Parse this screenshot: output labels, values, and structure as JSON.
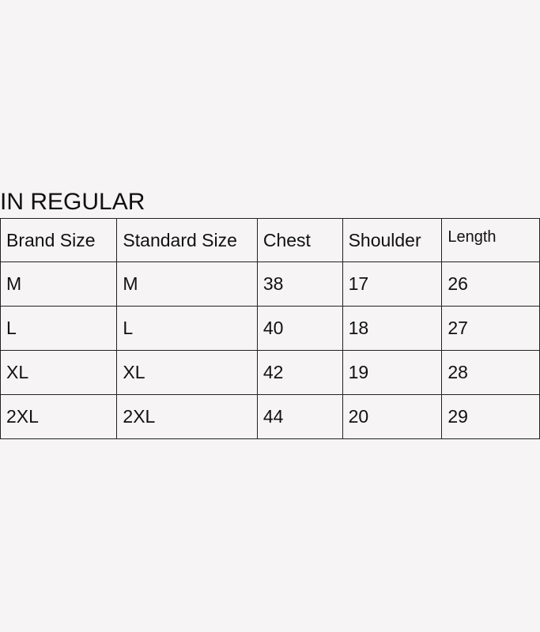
{
  "title": "IN REGULAR",
  "table": {
    "headers": [
      "Brand Size",
      "Standard Size",
      "Chest",
      "Shoulder",
      "Length"
    ],
    "rows": [
      [
        "M",
        "M",
        "38",
        "17",
        "26"
      ],
      [
        "L",
        "L",
        "40",
        "18",
        "27"
      ],
      [
        "XL",
        "XL",
        "42",
        "19",
        "28"
      ],
      [
        "2XL",
        "2XL",
        "44",
        "20",
        "29"
      ]
    ]
  }
}
